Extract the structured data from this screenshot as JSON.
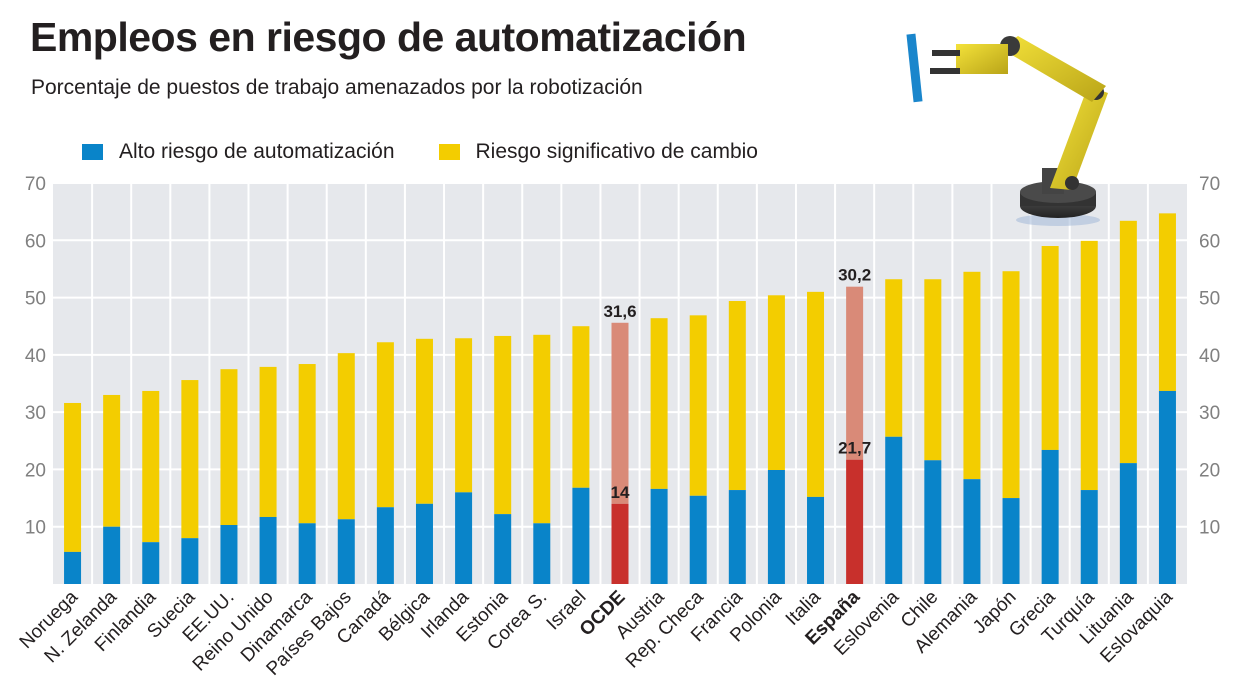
{
  "header": {
    "title": "Empleos en riesgo de automatización",
    "subtitle": "Porcentaje de puestos de trabajo amenazados  por la robotización"
  },
  "colors": {
    "high_risk": "#0984c9",
    "significant_change": "#f3cd00",
    "highlight_high": "#c8302c",
    "highlight_change": "#d98a78",
    "plot_bg": "#e6e8ec",
    "grid": "#ffffff",
    "tick_text": "#808080"
  },
  "illustration": "robot-arm-icon",
  "chart_data": {
    "type": "bar",
    "stacked": true,
    "title": "Empleos en riesgo de automatización",
    "subtitle": "Porcentaje de puestos de trabajo amenazados  por la robotización",
    "xlabel": "",
    "ylabel": "",
    "ylim": [
      0,
      70
    ],
    "yticks": [
      10,
      20,
      30,
      40,
      50,
      60,
      70
    ],
    "grid": true,
    "legend_position": "top-left",
    "categories": [
      "Noruega",
      "N. Zelanda",
      "Finlandia",
      "Suecia",
      "EE.UU.",
      "Reino Unido",
      "Dinamarca",
      "Países Bajos",
      "Canadá",
      "Bélgica",
      "Irlanda",
      "Estonia",
      "Corea S.",
      "Israel",
      "OCDE",
      "Austria",
      "Rep. Checa",
      "Francia",
      "Polonia",
      "Italia",
      "España",
      "Eslovenia",
      "Chile",
      "Alemania",
      "Japón",
      "Grecia",
      "Turquía",
      "Lituania",
      "Eslovaquia"
    ],
    "highlighted": [
      "OCDE",
      "España"
    ],
    "series": [
      {
        "name": "Alto riesgo de automatización",
        "values": [
          5.6,
          10.0,
          7.3,
          8.0,
          10.3,
          11.7,
          10.6,
          11.3,
          13.4,
          14.0,
          16.0,
          12.2,
          10.6,
          16.8,
          14.0,
          16.6,
          15.4,
          16.4,
          19.9,
          15.2,
          21.7,
          25.7,
          21.6,
          18.3,
          15.0,
          23.4,
          16.4,
          21.1,
          33.7
        ]
      },
      {
        "name": "Riesgo significativo de cambio",
        "values": [
          26.0,
          23.0,
          26.4,
          27.6,
          27.2,
          26.2,
          27.8,
          29.0,
          28.8,
          28.8,
          26.9,
          31.1,
          32.9,
          28.2,
          31.6,
          29.8,
          31.5,
          33.0,
          30.5,
          35.8,
          30.2,
          27.5,
          31.6,
          36.2,
          39.6,
          35.6,
          43.5,
          42.3,
          31.0
        ]
      }
    ],
    "annotations": [
      {
        "category": "OCDE",
        "series": "Riesgo significativo de cambio",
        "label": "31,6"
      },
      {
        "category": "OCDE",
        "series": "Alto riesgo de automatización",
        "label": "14"
      },
      {
        "category": "España",
        "series": "Riesgo significativo de cambio",
        "label": "30,2"
      },
      {
        "category": "España",
        "series": "Alto riesgo de automatización",
        "label": "21,7"
      }
    ]
  }
}
